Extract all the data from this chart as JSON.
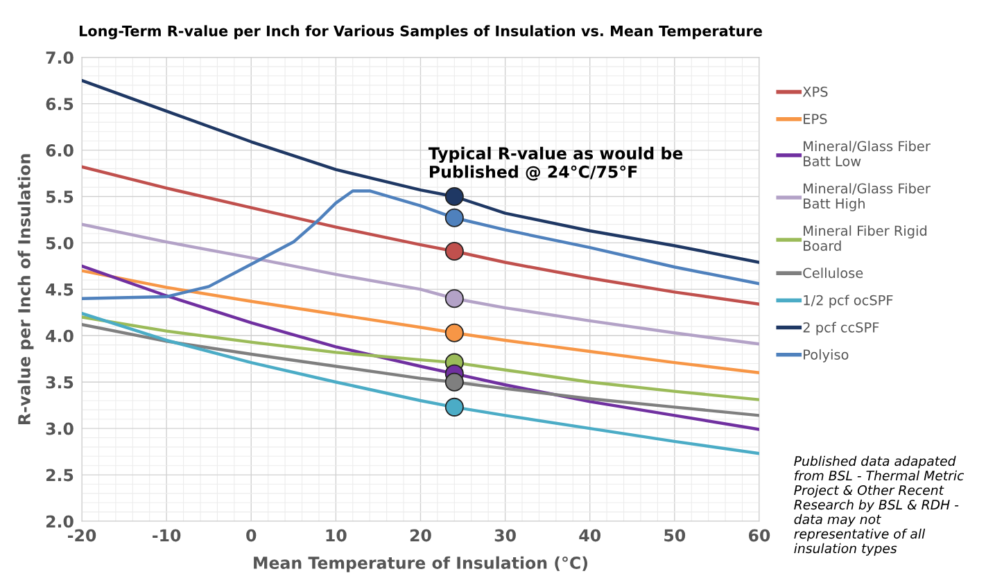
{
  "chart_data": {
    "type": "line",
    "title": "Long-Term R-value per Inch for Various Samples of Insulation vs. Mean Temperature",
    "xlabel": "Mean Temperature of Insulation (°C)",
    "ylabel": "R-value per Inch of Insulation",
    "x": [
      -20,
      -10,
      0,
      10,
      20,
      24,
      30,
      40,
      50,
      60
    ],
    "series": [
      {
        "name": "XPS",
        "color": "#c0504d",
        "values": [
          5.82,
          5.59,
          5.38,
          5.17,
          4.98,
          4.91,
          4.79,
          4.62,
          4.47,
          4.34
        ]
      },
      {
        "name": "EPS",
        "color": "#f79646",
        "values": [
          4.7,
          4.52,
          4.37,
          4.23,
          4.09,
          4.03,
          3.95,
          3.83,
          3.71,
          3.6
        ]
      },
      {
        "name": "Mineral/Glass Fiber Batt Low",
        "color": "#7030a0",
        "values": [
          4.75,
          4.43,
          4.14,
          3.88,
          3.67,
          3.59,
          3.47,
          3.29,
          3.14,
          2.99
        ]
      },
      {
        "name": "Mineral/Glass Fiber Batt High",
        "color": "#b3a2c7",
        "values": [
          5.2,
          5.01,
          4.84,
          4.66,
          4.5,
          4.4,
          4.3,
          4.16,
          4.03,
          3.91
        ]
      },
      {
        "name": "Mineral Fiber Rigid Board",
        "color": "#9bbb59",
        "values": [
          4.2,
          4.05,
          3.93,
          3.82,
          3.74,
          3.71,
          3.63,
          3.5,
          3.4,
          3.31
        ]
      },
      {
        "name": "Cellulose",
        "color": "#7f7f7f",
        "values": [
          4.12,
          3.94,
          3.8,
          3.67,
          3.54,
          3.5,
          3.43,
          3.32,
          3.23,
          3.14
        ]
      },
      {
        "name": "1/2 pcf ocSPF",
        "color": "#4bacc6",
        "values": [
          4.24,
          3.95,
          3.71,
          3.5,
          3.3,
          3.23,
          3.14,
          3.0,
          2.86,
          2.73
        ]
      },
      {
        "name": "2 pcf ccSPF",
        "color": "#1f3864",
        "values": [
          6.75,
          6.42,
          6.09,
          5.79,
          5.57,
          5.5,
          5.32,
          5.13,
          4.97,
          4.79
        ]
      },
      {
        "name": "Polyiso",
        "color": "#4f81bd",
        "x": [
          -20,
          -10,
          -5,
          0,
          5,
          8,
          10,
          12,
          14,
          20,
          24,
          30,
          40,
          50,
          60
        ],
        "values": [
          4.4,
          4.42,
          4.53,
          4.77,
          5.01,
          5.25,
          5.43,
          5.56,
          5.56,
          5.4,
          5.27,
          5.14,
          4.95,
          4.74,
          4.56
        ]
      },
      {
        "type": "scatter",
        "x": [
          24,
          24,
          24,
          24,
          24,
          24,
          24,
          24,
          24
        ],
        "values": [
          5.5,
          5.27,
          4.91,
          4.4,
          4.03,
          3.71,
          3.59,
          3.5,
          3.23
        ],
        "colors": [
          "#1f3864",
          "#4f81bd",
          "#c0504d",
          "#b3a2c7",
          "#f79646",
          "#9bbb59",
          "#7030a0",
          "#7f7f7f",
          "#4bacc6"
        ],
        "marker": "circle"
      }
    ],
    "annotations": [
      {
        "text": "Typical R-value as would be Published @ 24°C/75°F",
        "x": 24,
        "y": 5.5
      },
      "Published data adapated from BSL - Thermal Metric Project & Other Recent Research by BSL & RDH - data may not representative of all insulation types"
    ],
    "xlim": [
      -20,
      60
    ],
    "xticks": [
      -20,
      -10,
      0,
      10,
      20,
      30,
      40,
      50,
      60
    ],
    "ylim": [
      2.0,
      7.0
    ],
    "yticks": [
      {
        "value": 2.0,
        "label": "2.0"
      },
      {
        "value": 2.5,
        "label": "2.5"
      },
      {
        "value": 3.0,
        "label": "3.0"
      },
      {
        "value": 3.5,
        "label": "3.5"
      },
      {
        "value": 4.0,
        "label": "4.0"
      },
      {
        "value": 4.5,
        "label": "4.5"
      },
      {
        "value": 5.0,
        "label": "5.0"
      },
      {
        "value": 5.5,
        "label": "5.5"
      },
      {
        "value": 6.0,
        "label": "6.0"
      },
      {
        "value": 6.5,
        "label": "6.5"
      },
      {
        "value": 7.0,
        "label": "7.0"
      }
    ],
    "grid": true,
    "legend": "right",
    "marker": "none",
    "line_style": "solid"
  }
}
